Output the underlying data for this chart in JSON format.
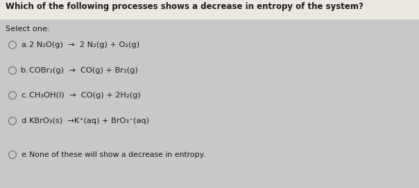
{
  "title": "Which of the following processes shows a decrease in entropy of the system?",
  "select_label": "Select one:",
  "options": [
    {
      "key": "a.",
      "text": "2 N₂O(g)  →  2 N₂(g) + O₂(g)"
    },
    {
      "key": "b.",
      "text": "COBr₂(g)  →  CO(g) + Br₂(g)"
    },
    {
      "key": "c.",
      "text": "CH₃OH(l)  →  CO(g) + 2H₂(g)"
    },
    {
      "key": "d.",
      "text": "KBrO₃(s)  →K⁺(aq) + BrO₃⁻(aq)"
    },
    {
      "key": "e.",
      "text": "None of these will show a decrease in entropy."
    }
  ],
  "bg_color": "#c8c8c8",
  "top_bg_color": "#eae8e0",
  "text_color": "#1a1a1a",
  "title_fontsize": 8.5,
  "body_fontsize": 8.2,
  "small_fontsize": 7.8,
  "circle_color": "#777777"
}
